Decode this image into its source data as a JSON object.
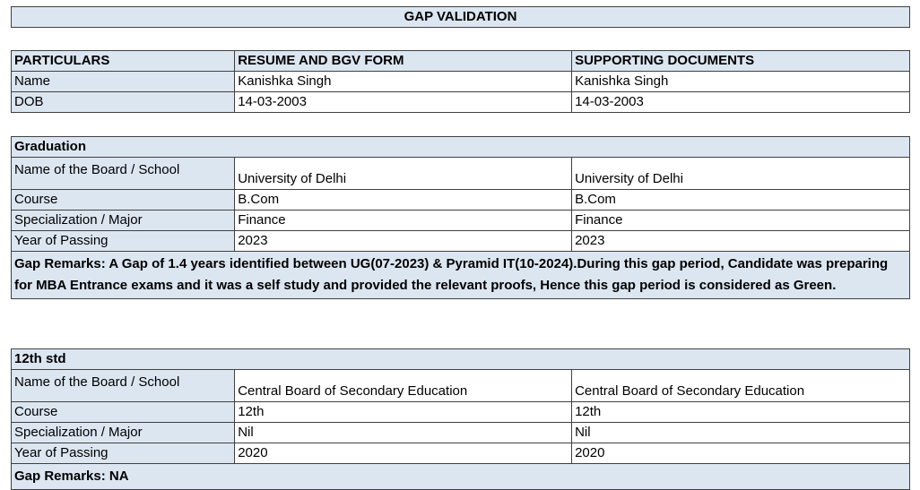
{
  "title": "GAP VALIDATION",
  "header": {
    "col1": "PARTICULARS",
    "col2": "RESUME AND BGV FORM",
    "col3": "SUPPORTING DOCUMENTS"
  },
  "personal": [
    {
      "label": "Name",
      "resume": "Kanishka Singh",
      "docs": "Kanishka Singh"
    },
    {
      "label": "DOB",
      "resume": "14-03-2003",
      "docs": "14-03-2003"
    }
  ],
  "graduation": {
    "heading": "Graduation",
    "rows": [
      {
        "label": "Name of the Board / School",
        "resume": "University of Delhi",
        "docs": "University of Delhi"
      },
      {
        "label": "Course",
        "resume": "B.Com",
        "docs": "B.Com"
      },
      {
        "label": "Specialization / Major",
        "resume": "Finance",
        "docs": "Finance"
      },
      {
        "label": "Year of Passing",
        "resume": "2023",
        "docs": "2023"
      }
    ],
    "remarks": "Gap Remarks: A Gap of 1.4 years identified between UG(07-2023) & Pyramid IT(10-2024).During this gap period, Candidate was preparing for MBA Entrance exams and it was a self study and provided the relevant proofs, Hence this gap period is considered as Green."
  },
  "twelfth": {
    "heading": "12th std",
    "rows": [
      {
        "label": "Name of the Board / School",
        "resume": "Central Board of Secondary Education",
        "docs": "Central Board of Secondary Education"
      },
      {
        "label": "Course",
        "resume": "12th",
        "docs": "12th"
      },
      {
        "label": "Specialization / Major",
        "resume": "Nil",
        "docs": "Nil"
      },
      {
        "label": "Year of Passing",
        "resume": "2020",
        "docs": "2020"
      }
    ],
    "remarks": "Gap Remarks: NA"
  }
}
